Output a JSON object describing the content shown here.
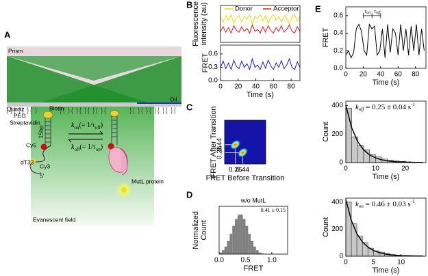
{
  "figure": {
    "panel_labels": [
      "A",
      "B",
      "C",
      "D",
      "E"
    ]
  },
  "diagram": {
    "prism": "Prism",
    "quartz": "Quartz",
    "oil": "Oil",
    "peg": "PEG",
    "biotin": "Biotin",
    "streptavidin": "Streptavidin",
    "bp": "15bp",
    "cy5": "Cy5",
    "dt33": "dT33",
    "cy3": "Cy3",
    "five_prime": "5'",
    "kon": [
      "k",
      "on",
      "(= 1/τ",
      "off",
      ")"
    ],
    "koff": [
      "k",
      "off",
      "(= 1/τ",
      "on",
      ")"
    ],
    "mutl": "MutL protein",
    "evanescent": "Evanescent field"
  },
  "chart_data": [
    {
      "type": "line",
      "ylabel": [
        "Fluorescence",
        "intensity (au)"
      ],
      "legend": "top",
      "x": [
        0,
        3,
        6,
        9,
        12,
        15,
        18,
        21,
        24,
        27,
        30,
        33,
        36,
        39,
        42,
        45,
        48,
        51,
        54,
        57,
        60,
        63,
        66,
        69,
        72,
        75,
        78,
        81,
        84,
        87,
        90
      ],
      "xlim": [
        0,
        90
      ],
      "ylim": [
        0,
        200
      ],
      "series": [
        {
          "name": "Donor",
          "color": "#e6df00",
          "values": [
            140,
            110,
            145,
            120,
            150,
            105,
            135,
            145,
            110,
            140,
            125,
            150,
            100,
            140,
            130,
            150,
            115,
            145,
            105,
            135,
            150,
            120,
            140,
            110,
            145,
            130,
            100,
            140,
            150,
            115,
            140
          ]
        },
        {
          "name": "Acceptor",
          "color": "#e8141c",
          "values": [
            60,
            85,
            55,
            80,
            50,
            90,
            65,
            55,
            85,
            60,
            75,
            50,
            95,
            60,
            70,
            50,
            85,
            55,
            90,
            65,
            50,
            80,
            60,
            90,
            55,
            70,
            95,
            60,
            50,
            85,
            60
          ]
        }
      ]
    },
    {
      "type": "line",
      "ylabel": "FRET",
      "xlabel": "Time (s)",
      "x": [
        0,
        3,
        6,
        9,
        12,
        15,
        18,
        21,
        24,
        27,
        30,
        33,
        36,
        39,
        42,
        45,
        48,
        51,
        54,
        57,
        60,
        63,
        66,
        69,
        72,
        75,
        78,
        81,
        84,
        87,
        90
      ],
      "xlim": [
        0,
        90
      ],
      "ylim": [
        0,
        0.8
      ],
      "xticks": [
        0,
        20,
        40,
        60,
        80
      ],
      "yticks": [
        {
          "value": 0,
          "label": "0.0"
        },
        0.3,
        0.6
      ],
      "series": [
        {
          "name": "FRET",
          "color": "#1a1ad0",
          "values": [
            0.3,
            0.44,
            0.27,
            0.4,
            0.25,
            0.46,
            0.32,
            0.27,
            0.44,
            0.3,
            0.38,
            0.25,
            0.49,
            0.3,
            0.35,
            0.25,
            0.42,
            0.28,
            0.46,
            0.33,
            0.25,
            0.4,
            0.3,
            0.45,
            0.27,
            0.35,
            0.49,
            0.3,
            0.25,
            0.42,
            0.3
          ]
        }
      ]
    },
    {
      "type": "scatter",
      "xlabel": "FRET Before Transition",
      "ylabel": "FRET After Transition",
      "x": [
        0.26,
        0.44
      ],
      "y": [
        0.44,
        0.26
      ],
      "xlim": [
        0,
        1
      ],
      "ylim": [
        0,
        1
      ],
      "xticks": [
        0.26,
        0.44
      ],
      "yticks": [
        0.26,
        0.44
      ],
      "color": "#ff3000",
      "background": "#1414a8"
    },
    {
      "type": "histogram",
      "title": "w/o MutL",
      "annotation": [
        "0.41 ± 0.15"
      ],
      "xlabel": "FRET",
      "ylabel": [
        "Normalized",
        "Count"
      ],
      "bins": [
        0,
        0.05,
        0.1,
        0.15,
        0.2,
        0.25,
        0.3,
        0.35,
        0.4,
        0.45,
        0.5,
        0.55,
        0.6,
        0.65,
        0.7,
        0.75,
        0.8,
        0.85,
        0.9,
        0.95,
        1.0
      ],
      "counts": [
        0.04,
        0.1,
        0.19,
        0.33,
        0.51,
        0.71,
        0.88,
        0.99,
        0.99,
        0.88,
        0.71,
        0.51,
        0.33,
        0.19,
        0.1,
        0.04,
        0.02,
        0.01,
        0.002,
        0
      ],
      "xlim": [
        0,
        1.3
      ],
      "ylim": [
        0,
        1.2
      ],
      "xticks": [
        {
          "value": 0,
          "label": "0.0"
        },
        0.5,
        {
          "value": 1,
          "label": "1.0"
        }
      ],
      "color": "#808080"
    },
    {
      "type": "line",
      "ylabel": "FRET",
      "xlabel": "Time (s)",
      "annotation": [
        "τ",
        "on",
        "τ",
        "off"
      ],
      "x": [
        0,
        3,
        6,
        9,
        12,
        15,
        18,
        21,
        24,
        27,
        30,
        33,
        36,
        39,
        42,
        45,
        48,
        51,
        54,
        57,
        60,
        63,
        66,
        69,
        72,
        75,
        78,
        81,
        84,
        87,
        90
      ],
      "xlim": [
        0,
        92
      ],
      "ylim": [
        0,
        0.7
      ],
      "xticks": [
        0,
        20,
        40,
        60,
        80
      ],
      "yticks": [
        {
          "value": 0,
          "label": "0.0"
        },
        0.2,
        0.4,
        0.6
      ],
      "series": [
        {
          "name": "FRET",
          "color": "#000000",
          "values": [
            0.15,
            0.2,
            0.12,
            0.18,
            0.45,
            0.5,
            0.42,
            0.2,
            0.15,
            0.5,
            0.45,
            0.48,
            0.15,
            0.2,
            0.45,
            0.12,
            0.5,
            0.18,
            0.45,
            0.4,
            0.15,
            0.5,
            0.2,
            0.45,
            0.15,
            0.48,
            0.2,
            0.5,
            0.15,
            0.45,
            0.2
          ]
        }
      ]
    },
    {
      "type": "histogram",
      "xlabel": "Time (s)",
      "ylabel": "Count",
      "annotation": [
        "k",
        "off",
        " = 0.25 ± 0.04 s",
        "-1"
      ],
      "bins": [
        0,
        2,
        4,
        6,
        8,
        10,
        12,
        14,
        16,
        18,
        20,
        22,
        24,
        26
      ],
      "counts": [
        380,
        180,
        120,
        90,
        55,
        40,
        25,
        18,
        12,
        8,
        5,
        3,
        2
      ],
      "fit": {
        "x": [
          0,
          2,
          4,
          6,
          8,
          10,
          12,
          14,
          16,
          18,
          20,
          22,
          24,
          26
        ],
        "values": [
          400,
          242,
          147,
          89,
          54,
          33,
          20,
          12,
          7,
          4,
          3,
          2,
          1,
          1
        ]
      },
      "xlim": [
        0,
        27
      ],
      "ylim": [
        0,
        430
      ],
      "xticks": [
        0,
        10,
        20
      ],
      "yticks": [
        0,
        200,
        400
      ],
      "color": "#c8c8c8"
    },
    {
      "type": "histogram",
      "xlabel": "Time (s)",
      "ylabel": "Count",
      "annotation": [
        "k",
        "on",
        " = 0.46 ± 0.03 s",
        "-1"
      ],
      "bins": [
        0,
        1,
        2,
        3,
        4,
        5,
        6,
        7,
        8,
        9,
        10,
        11,
        12,
        13,
        14
      ],
      "counts": [
        400,
        240,
        150,
        100,
        60,
        40,
        30,
        20,
        12,
        8,
        5,
        4,
        2,
        1
      ],
      "fit": {
        "x": [
          0,
          1,
          2,
          3,
          4,
          5,
          6,
          7,
          8,
          9,
          10,
          11,
          12,
          13,
          14
        ],
        "values": [
          420,
          265,
          167,
          106,
          67,
          42,
          27,
          17,
          11,
          7,
          4,
          3,
          2,
          1,
          1
        ]
      },
      "xlim": [
        0,
        14.5
      ],
      "ylim": [
        0,
        430
      ],
      "xticks": [
        0,
        5,
        10
      ],
      "yticks": [
        0,
        200,
        400
      ],
      "color": "#c8c8c8"
    }
  ]
}
